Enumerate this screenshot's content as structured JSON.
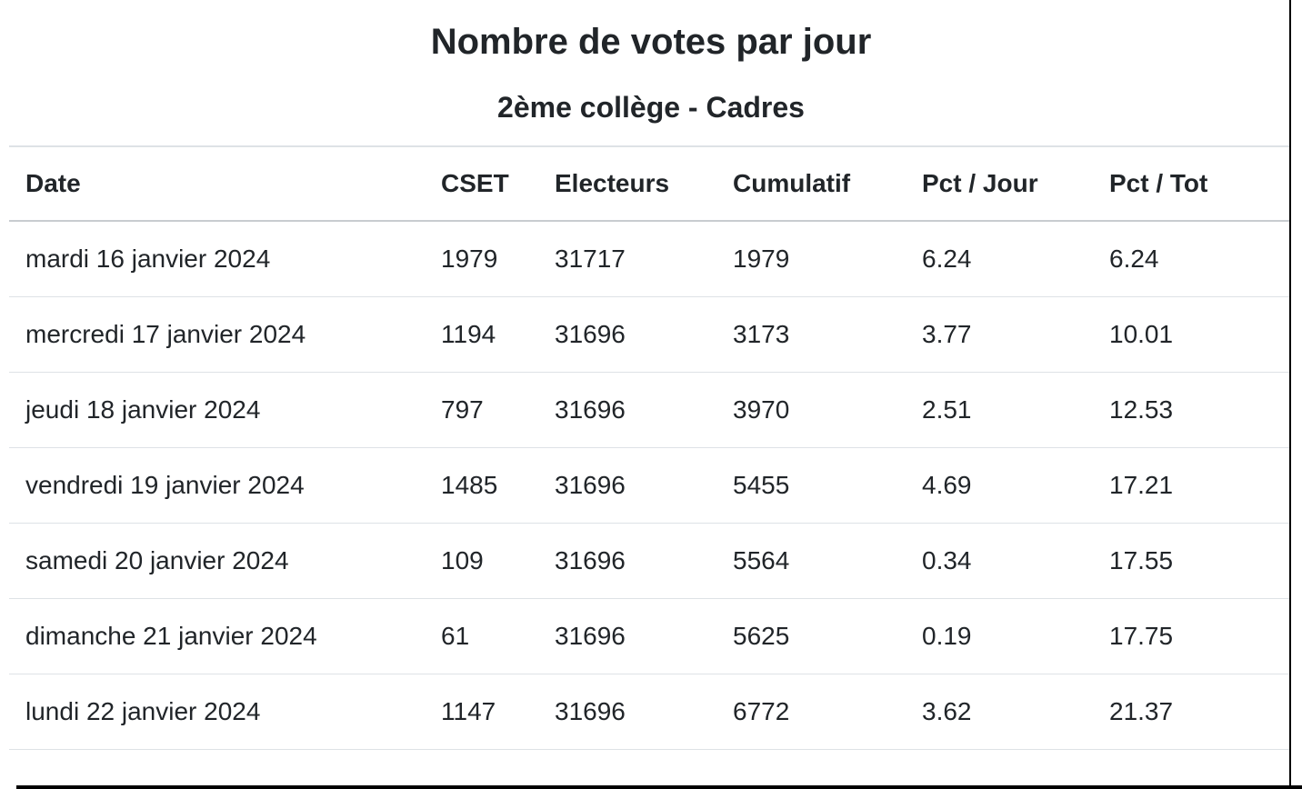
{
  "title": "Nombre de votes par jour",
  "subtitle": "2ème collège - Cadres",
  "chart_data": {
    "type": "table",
    "title": "Nombre de votes par jour",
    "subtitle": "2ème collège - Cadres",
    "columns": [
      "Date",
      "CSET",
      "Electeurs",
      "Cumulatif",
      "Pct / Jour",
      "Pct / Tot"
    ],
    "rows": [
      [
        "mardi 16 janvier 2024",
        "1979",
        "31717",
        "1979",
        "6.24",
        "6.24"
      ],
      [
        "mercredi 17 janvier 2024",
        "1194",
        "31696",
        "3173",
        "3.77",
        "10.01"
      ],
      [
        "jeudi 18 janvier 2024",
        "797",
        "31696",
        "3970",
        "2.51",
        "12.53"
      ],
      [
        "vendredi 19 janvier 2024",
        "1485",
        "31696",
        "5455",
        "4.69",
        "17.21"
      ],
      [
        "samedi 20 janvier 2024",
        "109",
        "31696",
        "5564",
        "0.34",
        "17.55"
      ],
      [
        "dimanche 21 janvier 2024",
        "61",
        "31696",
        "5625",
        "0.19",
        "17.75"
      ],
      [
        "lundi 22 janvier 2024",
        "1147",
        "31696",
        "6772",
        "3.62",
        "21.37"
      ]
    ]
  },
  "colors": {
    "text": "#212529",
    "row_divider": "#dee2e6",
    "header_divider": "#c8ccd0",
    "frame": "#000000",
    "background": "#ffffff"
  }
}
